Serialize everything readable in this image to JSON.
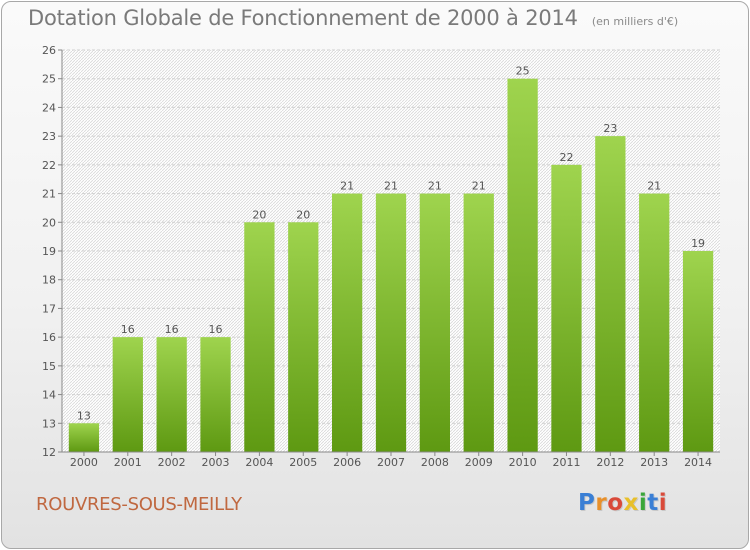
{
  "header": {
    "title": "Dotation Globale de Fonctionnement de 2000 à 2014",
    "unit_note": "(en milliers d'€)"
  },
  "footer": {
    "commune": "ROUVRES-SOUS-MEILLY",
    "logo_letters": [
      "P",
      "r",
      "o",
      "x",
      "i",
      "t",
      "i"
    ],
    "logo_colors": [
      "#3a7fd5",
      "#e8902a",
      "#d94a3a",
      "#e8c02a",
      "#3aa63a",
      "#3a7fd5",
      "#d94a3a"
    ]
  },
  "chart_data": {
    "type": "bar",
    "categories": [
      "2000",
      "2001",
      "2002",
      "2003",
      "2004",
      "2005",
      "2006",
      "2007",
      "2008",
      "2009",
      "2010",
      "2011",
      "2012",
      "2013",
      "2014"
    ],
    "values": [
      13,
      16,
      16,
      16,
      20,
      20,
      21,
      21,
      21,
      21,
      25,
      22,
      23,
      21,
      19
    ],
    "title": "Dotation Globale de Fonctionnement de 2000 à 2014",
    "subtitle": "(en milliers d'€)",
    "xlabel": "",
    "ylabel": "",
    "ylim": [
      12,
      26
    ],
    "yticks": [
      12,
      13,
      14,
      15,
      16,
      17,
      18,
      19,
      20,
      21,
      22,
      23,
      24,
      25,
      26
    ],
    "grid": true,
    "bar_color_top": "#9fd44e",
    "bar_color_bottom": "#5e9912"
  }
}
